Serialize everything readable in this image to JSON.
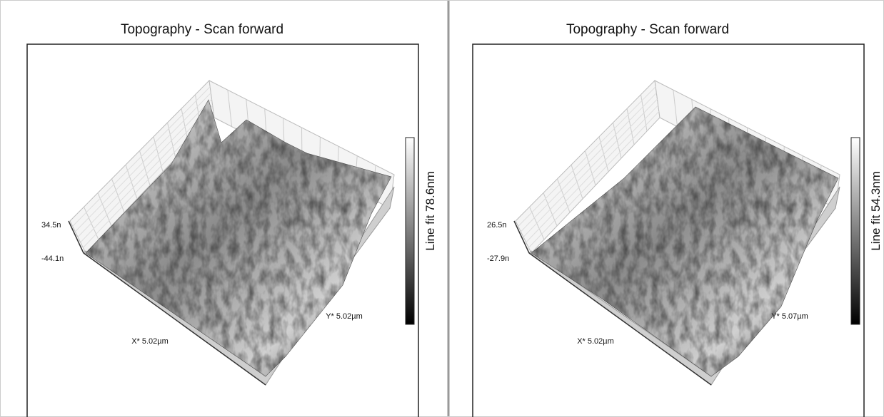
{
  "panels": [
    {
      "title": "Topography - Scan forward",
      "z_top": "34.5n",
      "z_bottom": "-44.1n",
      "x_axis": "X* 5.02µm",
      "y_axis": "Y* 5.02µm",
      "colorbar_label": "Line fit 78.6nm"
    },
    {
      "title": "Topography - Scan forward",
      "z_top": "26.5n",
      "z_bottom": "-27.9n",
      "x_axis": "X* 5.02µm",
      "y_axis": "Y* 5.07µm",
      "colorbar_label": "Line fit 54.3nm"
    }
  ]
}
